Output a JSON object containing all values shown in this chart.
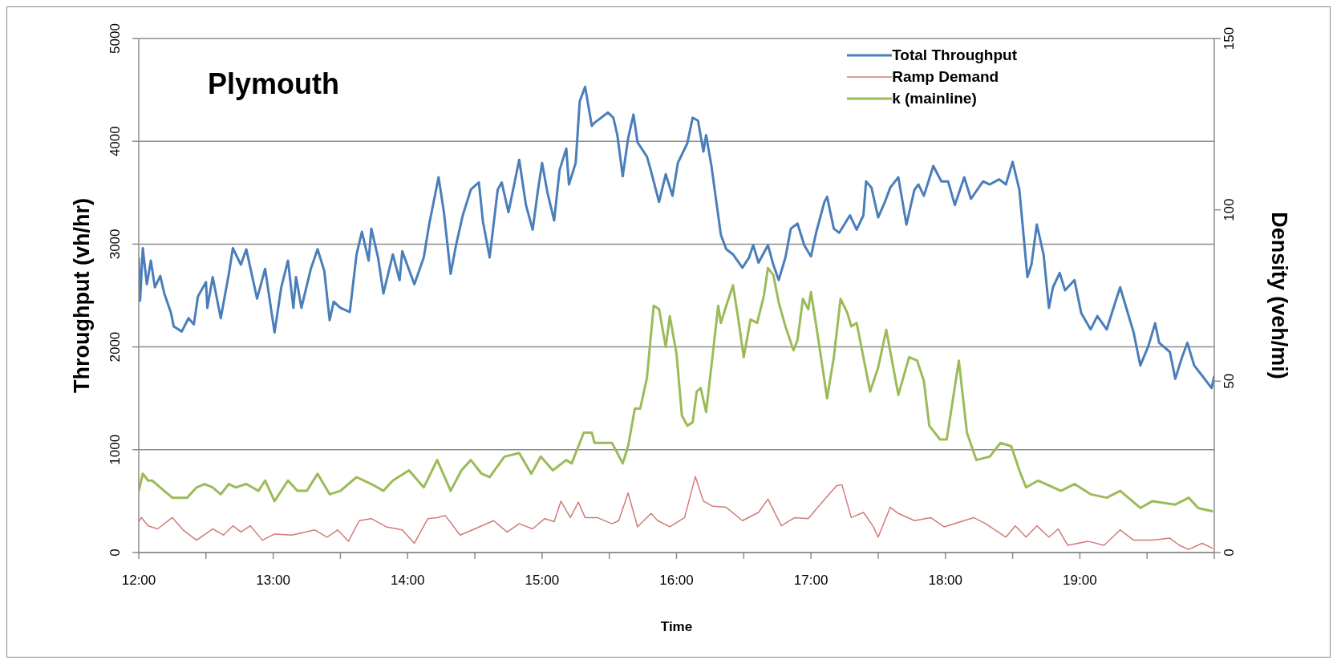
{
  "chart_data": {
    "type": "line",
    "title": "Plymouth",
    "xlabel": "Time",
    "ylabel": "Throughput (vh/hr)",
    "y2label": "Density (veh/mi)",
    "xlim": [
      12,
      20
    ],
    "xticks": [
      {
        "value": 12,
        "label": "12:00"
      },
      {
        "value": 12.5,
        "label": null
      },
      {
        "value": 13,
        "label": "13:00"
      },
      {
        "value": 13.5,
        "label": null
      },
      {
        "value": 14,
        "label": "14:00"
      },
      {
        "value": 14.5,
        "label": null
      },
      {
        "value": 15,
        "label": "15:00"
      },
      {
        "value": 15.5,
        "label": null
      },
      {
        "value": 16,
        "label": "16:00"
      },
      {
        "value": 16.5,
        "label": null
      },
      {
        "value": 17,
        "label": "17:00"
      },
      {
        "value": 17.5,
        "label": null
      },
      {
        "value": 18,
        "label": "18:00"
      },
      {
        "value": 18.5,
        "label": null
      },
      {
        "value": 19,
        "label": "19:00"
      },
      {
        "value": 19.5,
        "label": null
      },
      {
        "value": 20,
        "label": null
      }
    ],
    "ylim": [
      0,
      5000
    ],
    "yticks": [
      0,
      1000,
      2000,
      3000,
      4000,
      5000
    ],
    "y2lim": [
      0,
      150
    ],
    "y2ticks": [
      0,
      50,
      100,
      150
    ],
    "grid": "y",
    "legend": "top right",
    "marker": "none",
    "series": [
      {
        "name": "Total Throughput",
        "color": "#4a7ebb",
        "x": [
          12.0,
          12.01,
          12.03,
          12.06,
          12.09,
          12.12,
          12.16,
          12.19,
          12.24,
          12.26,
          12.32,
          12.37,
          12.41,
          12.44,
          12.5,
          12.51,
          12.55,
          12.61,
          12.67,
          12.7,
          12.76,
          12.8,
          12.88,
          12.94,
          13.01,
          13.06,
          13.11,
          13.15,
          13.17,
          13.21,
          13.28,
          13.33,
          13.38,
          13.42,
          13.45,
          13.5,
          13.57,
          13.62,
          13.66,
          13.71,
          13.73,
          13.78,
          13.82,
          13.89,
          13.94,
          13.96,
          14.05,
          14.12,
          14.16,
          14.23,
          14.27,
          14.32,
          14.36,
          14.41,
          14.47,
          14.53,
          14.56,
          14.61,
          14.67,
          14.7,
          14.75,
          14.83,
          14.88,
          14.93,
          14.97,
          15.0,
          15.04,
          15.09,
          15.13,
          15.18,
          15.2,
          15.25,
          15.28,
          15.32,
          15.37,
          15.39,
          15.49,
          15.53,
          15.56,
          15.6,
          15.64,
          15.68,
          15.71,
          15.78,
          15.8,
          15.87,
          15.92,
          15.97,
          16.01,
          16.08,
          16.12,
          16.16,
          16.2,
          16.22,
          16.26,
          16.29,
          16.33,
          16.37,
          16.42,
          16.49,
          16.54,
          16.57,
          16.61,
          16.68,
          16.72,
          16.76,
          16.81,
          16.85,
          16.9,
          16.95,
          17.0,
          17.04,
          17.1,
          17.12,
          17.17,
          17.21,
          17.29,
          17.34,
          17.39,
          17.41,
          17.45,
          17.5,
          17.55,
          17.59,
          17.65,
          17.71,
          17.77,
          17.8,
          17.84,
          17.91,
          17.97,
          18.02,
          18.07,
          18.14,
          18.19,
          18.28,
          18.33,
          18.4,
          18.45,
          18.5,
          18.55,
          18.61,
          18.64,
          18.68,
          18.73,
          18.77,
          18.8,
          18.85,
          18.89,
          18.96,
          19.01,
          19.08,
          19.13,
          19.2,
          19.26,
          19.3,
          19.35,
          19.4,
          19.45,
          19.51,
          19.56,
          19.59,
          19.67,
          19.71,
          19.76,
          19.8,
          19.85,
          19.91,
          19.98,
          20.0
        ],
        "values": [
          2870,
          2450,
          2960,
          2610,
          2840,
          2580,
          2690,
          2520,
          2330,
          2200,
          2150,
          2280,
          2220,
          2490,
          2630,
          2380,
          2680,
          2280,
          2710,
          2960,
          2800,
          2950,
          2470,
          2760,
          2140,
          2580,
          2840,
          2380,
          2680,
          2380,
          2760,
          2950,
          2740,
          2260,
          2440,
          2380,
          2340,
          2900,
          3120,
          2840,
          3150,
          2870,
          2520,
          2900,
          2650,
          2930,
          2610,
          2870,
          3190,
          3650,
          3310,
          2710,
          2990,
          3280,
          3530,
          3600,
          3220,
          2870,
          3530,
          3600,
          3310,
          3820,
          3380,
          3140,
          3530,
          3790,
          3500,
          3230,
          3720,
          3930,
          3580,
          3790,
          4390,
          4530,
          4150,
          4180,
          4280,
          4230,
          4060,
          3660,
          4030,
          4260,
          3990,
          3850,
          3760,
          3410,
          3680,
          3470,
          3790,
          3980,
          4230,
          4200,
          3900,
          4060,
          3760,
          3470,
          3090,
          2950,
          2900,
          2770,
          2870,
          2990,
          2820,
          2990,
          2800,
          2650,
          2870,
          3150,
          3200,
          2990,
          2880,
          3120,
          3410,
          3460,
          3150,
          3110,
          3280,
          3140,
          3280,
          3610,
          3550,
          3260,
          3410,
          3550,
          3650,
          3190,
          3530,
          3580,
          3470,
          3760,
          3610,
          3610,
          3380,
          3650,
          3440,
          3610,
          3580,
          3630,
          3580,
          3800,
          3530,
          2680,
          2800,
          3190,
          2900,
          2380,
          2580,
          2720,
          2550,
          2650,
          2330,
          2170,
          2300,
          2170,
          2420,
          2580,
          2360,
          2140,
          1820,
          2010,
          2230,
          2040,
          1950,
          1690,
          1900,
          2040,
          1820,
          1720,
          1600,
          1720
        ]
      },
      {
        "name": "Ramp Demand",
        "color": "#d07b78",
        "x": [
          12.0,
          12.02,
          12.07,
          12.14,
          12.25,
          12.33,
          12.43,
          12.55,
          12.63,
          12.7,
          12.76,
          12.83,
          12.92,
          13.01,
          13.14,
          13.31,
          13.4,
          13.48,
          13.56,
          13.64,
          13.73,
          13.84,
          13.96,
          14.05,
          14.15,
          14.22,
          14.28,
          14.39,
          14.5,
          14.64,
          14.74,
          14.83,
          14.93,
          15.02,
          15.09,
          15.14,
          15.21,
          15.27,
          15.32,
          15.41,
          15.52,
          15.57,
          15.64,
          15.71,
          15.81,
          15.86,
          15.95,
          16.06,
          16.14,
          16.2,
          16.27,
          16.37,
          16.49,
          16.61,
          16.68,
          16.78,
          16.88,
          16.98,
          17.07,
          17.19,
          17.23,
          17.3,
          17.39,
          17.46,
          17.5,
          17.59,
          17.65,
          17.77,
          17.89,
          17.99,
          18.21,
          18.3,
          18.45,
          18.52,
          18.6,
          18.68,
          18.77,
          18.84,
          18.91,
          19.06,
          19.18,
          19.3,
          19.4,
          19.54,
          19.67,
          19.74,
          19.81,
          19.91,
          19.99
        ],
        "values": [
          300,
          340,
          260,
          230,
          340,
          220,
          120,
          230,
          170,
          260,
          200,
          260,
          120,
          180,
          170,
          220,
          150,
          220,
          110,
          310,
          330,
          250,
          220,
          90,
          330,
          340,
          360,
          170,
          230,
          310,
          200,
          280,
          230,
          330,
          300,
          500,
          340,
          490,
          340,
          340,
          280,
          310,
          580,
          250,
          380,
          310,
          250,
          340,
          740,
          500,
          450,
          440,
          310,
          390,
          520,
          260,
          340,
          330,
          470,
          650,
          660,
          340,
          390,
          260,
          150,
          440,
          380,
          310,
          340,
          250,
          340,
          280,
          150,
          260,
          150,
          260,
          150,
          230,
          70,
          110,
          70,
          220,
          120,
          120,
          140,
          70,
          30,
          90,
          40
        ]
      },
      {
        "name": "k (mainline)",
        "color": "#9bbb59",
        "axis": "y2",
        "x": [
          12.0,
          12.03,
          12.07,
          12.1,
          12.16,
          12.25,
          12.36,
          12.43,
          12.49,
          12.55,
          12.61,
          12.67,
          12.72,
          12.8,
          12.89,
          12.94,
          13.01,
          13.11,
          13.18,
          13.25,
          13.33,
          13.42,
          13.5,
          13.62,
          13.73,
          13.82,
          13.89,
          14.01,
          14.12,
          14.22,
          14.32,
          14.4,
          14.47,
          14.55,
          14.61,
          14.72,
          14.83,
          14.92,
          14.99,
          15.08,
          15.18,
          15.22,
          15.31,
          15.37,
          15.39,
          15.52,
          15.6,
          15.64,
          15.69,
          15.73,
          15.78,
          15.83,
          15.87,
          15.92,
          15.95,
          16.0,
          16.04,
          16.08,
          16.12,
          16.15,
          16.18,
          16.22,
          16.27,
          16.31,
          16.33,
          16.37,
          16.42,
          16.46,
          16.5,
          16.55,
          16.6,
          16.65,
          16.68,
          16.72,
          16.76,
          16.81,
          16.87,
          16.9,
          16.94,
          16.98,
          17.0,
          17.04,
          17.09,
          17.12,
          17.17,
          17.22,
          17.27,
          17.3,
          17.34,
          17.4,
          17.44,
          17.5,
          17.56,
          17.65,
          17.73,
          17.79,
          17.84,
          17.88,
          17.96,
          18.01,
          18.1,
          18.16,
          18.23,
          18.33,
          18.41,
          18.49,
          18.55,
          18.6,
          18.69,
          18.86,
          18.96,
          19.08,
          19.2,
          19.3,
          19.45,
          19.54,
          19.71,
          19.81,
          19.88,
          19.99
        ],
        "values": [
          18,
          23,
          21,
          21,
          19,
          16,
          16,
          19,
          20,
          19,
          17,
          20,
          19,
          20,
          18,
          21,
          15,
          21,
          18,
          18,
          23,
          17,
          18,
          22,
          20,
          18,
          21,
          24,
          19,
          27,
          18,
          24,
          27,
          23,
          22,
          28,
          29,
          23,
          28,
          24,
          27,
          26,
          35,
          35,
          32,
          32,
          26,
          31,
          42,
          42,
          51,
          72,
          71,
          60,
          69,
          58,
          40,
          37,
          38,
          47,
          48,
          41,
          58,
          72,
          67,
          72,
          78,
          68,
          57,
          68,
          67,
          75,
          83,
          81,
          73,
          66,
          59,
          62,
          74,
          71,
          76,
          66,
          53,
          45,
          57,
          74,
          70,
          66,
          67,
          55,
          47,
          54,
          65,
          46,
          57,
          56,
          50,
          37,
          33,
          33,
          56,
          35,
          27,
          28,
          32,
          31,
          24,
          19,
          21,
          18,
          20,
          17,
          16,
          18,
          13,
          15,
          14,
          16,
          13,
          12
        ]
      }
    ]
  }
}
